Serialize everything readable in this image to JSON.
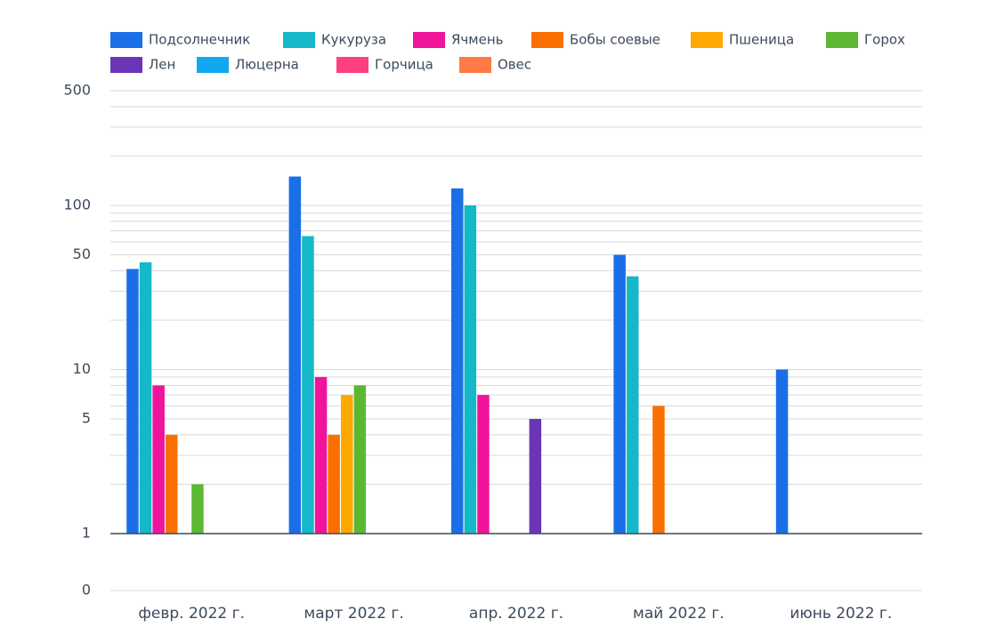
{
  "chart_data": {
    "type": "bar",
    "log_scale": true,
    "categories": [
      "февр. 2022 г.",
      "март 2022 г.",
      "апр. 2022 г.",
      "май 2022 г.",
      "июнь 2022 г."
    ],
    "series": [
      {
        "name": "Подсолнечник",
        "color": "#1a6fe8",
        "values": [
          41,
          150,
          127,
          50,
          10
        ]
      },
      {
        "name": "Кукуруза",
        "color": "#14b8c8",
        "values": [
          45,
          65,
          100,
          37,
          null
        ]
      },
      {
        "name": "Ячмень",
        "color": "#f0149a",
        "values": [
          8,
          9,
          7,
          null,
          null
        ]
      },
      {
        "name": "Бобы соевые",
        "color": "#fa7000",
        "values": [
          4,
          4,
          null,
          6,
          null
        ]
      },
      {
        "name": "Пшеница",
        "color": "#ffa800",
        "values": [
          null,
          7,
          null,
          null,
          null
        ]
      },
      {
        "name": "Горох",
        "color": "#5cb833",
        "values": [
          2,
          8,
          null,
          null,
          null
        ]
      },
      {
        "name": "Лен",
        "color": "#6a35b7",
        "values": [
          null,
          null,
          5,
          null,
          null
        ]
      },
      {
        "name": "Люцерна",
        "color": "#12a8f0",
        "values": [
          null,
          null,
          null,
          null,
          null
        ]
      },
      {
        "name": "Горчица",
        "color": "#ff4080",
        "values": [
          null,
          null,
          null,
          null,
          null
        ]
      },
      {
        "name": "Овес",
        "color": "#ff7a45",
        "values": [
          null,
          null,
          null,
          null,
          null
        ]
      }
    ],
    "ylim": [
      0.45,
      500
    ],
    "yticks": [
      {
        "value": 0.45,
        "label": "0"
      },
      1,
      5,
      10,
      50,
      100,
      500
    ],
    "minor_grid": [
      2,
      3,
      4,
      6,
      7,
      8,
      9,
      20,
      30,
      40,
      60,
      70,
      80,
      90,
      200,
      300,
      400
    ],
    "bar_base": 1,
    "grid": true,
    "legend": "top"
  }
}
